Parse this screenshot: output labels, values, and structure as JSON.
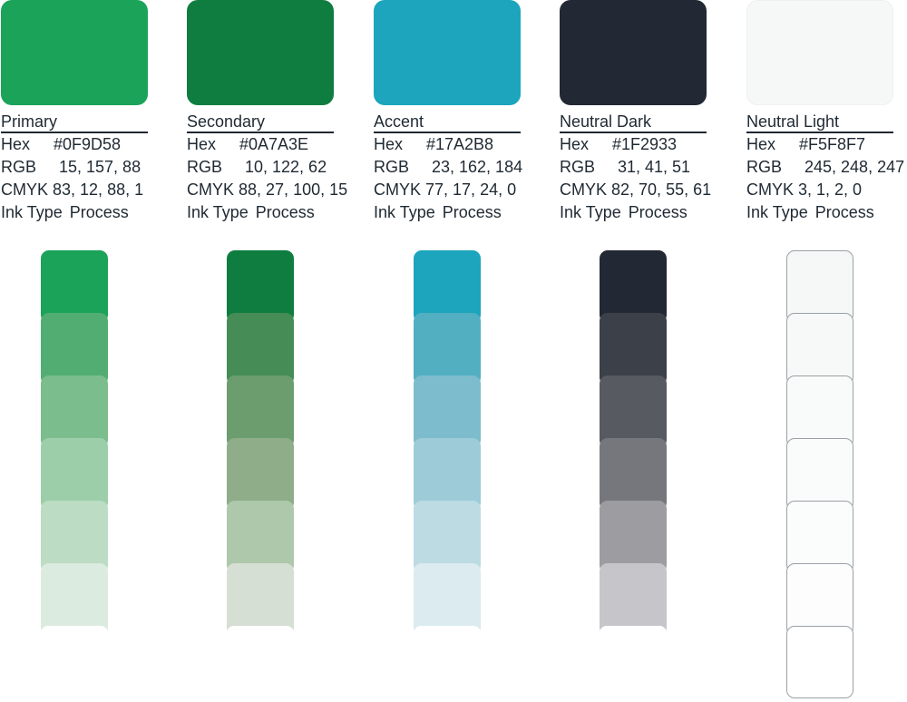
{
  "palette": [
    {
      "name": "Primary",
      "hex": "#0F9D58",
      "rgb": "15, 157, 88",
      "cmyk": "83, 12, 88, 1",
      "ink": "Process",
      "swatch": "#1ba35a",
      "tints": [
        "#1ba35a",
        "#52ad72",
        "#7cbd8d",
        "#9cceaa",
        "#bcdcc3",
        "#dcebe0",
        "#ffffff"
      ]
    },
    {
      "name": "Secondary",
      "hex": "#0A7A3E",
      "rgb": "10, 122, 62",
      "cmyk": "88, 27, 100, 15",
      "ink": "Process",
      "swatch": "#0f7d40",
      "tints": [
        "#0f7d40",
        "#458c56",
        "#6b9d6f",
        "#8ead88",
        "#aec8ab",
        "#d6dfd3",
        "#ffffff"
      ]
    },
    {
      "name": "Accent",
      "hex": "#17A2B8",
      "rgb": "23, 162, 184",
      "cmyk": "77, 17, 24, 0",
      "ink": "Process",
      "swatch": "#1ca5bc",
      "tints": [
        "#1ca5bc",
        "#52afc2",
        "#7dbccd",
        "#9dcbd8",
        "#bcdbe3",
        "#dbebf0",
        "#ffffff"
      ]
    },
    {
      "name": "Neutral Dark",
      "hex": "#1F2933",
      "rgb": "31, 41, 51",
      "cmyk": "82, 70, 55, 61",
      "ink": "Process",
      "swatch": "#222934",
      "tints": [
        "#222934",
        "#3c4048",
        "#575a61",
        "#76777d",
        "#9c9ca1",
        "#c6c6ca",
        "#ffffff"
      ]
    },
    {
      "name": "Neutral Light",
      "hex": "#F5F8F7",
      "rgb": "245, 248, 247",
      "cmyk": "3, 1, 2, 0",
      "ink": "Process",
      "swatch": "#f5f8f7",
      "tints": [
        "#f5f8f7",
        "#f7f9f8",
        "#f9fafa",
        "#fafbfb",
        "#fbfcfc",
        "#fdfdfd",
        "#ffffff"
      ]
    }
  ],
  "labels": {
    "hex": "Hex",
    "rgb": "RGB",
    "cmyk": "CMYK",
    "ink": "Ink Type"
  }
}
